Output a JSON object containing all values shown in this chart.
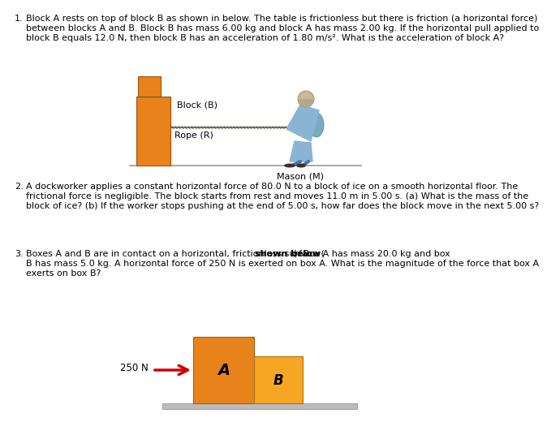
{
  "background_color": "#ffffff",
  "text_color": "#000000",
  "q1_line1": "Block A rests on top of block B as shown in below. The table is frictionless but there is friction (a horizontal force)",
  "q1_line2": "between blocks A and B. Block B has mass 6.00 kg and block A has mass 2.00 kg. If the horizontal pull applied to",
  "q1_line3": "block B equals 12.0 N, then block B has an acceleration of 1.80 m/s². What is the acceleration of block A?",
  "q2_line1": "A dockworker applies a constant horizontal force of 80.0 N to a block of ice on a smooth horizontal floor. The",
  "q2_line2": "frictional force is negligible. The block starts from rest and moves 11.0 m in 5.00 s. (a) What is the mass of the",
  "q2_line3": "block of ice? (b) If the worker stops pushing at the end of 5.00 s, how far does the block move in the next 5.00 s?",
  "q3_line1_pre": "Boxes A and B are in contact on a horizontal, frictionless surface (",
  "q3_line1_bold": "shown below",
  "q3_line1_post": "). Box A has mass 20.0 kg and box",
  "q3_line2": "B has mass 5.0 kg. A horizontal force of 250 N is exerted on box A. What is the magnitude of the force that box A",
  "q3_line3": "exerts on box B?",
  "block_orange": "#E8821A",
  "block_light_orange": "#F5A623",
  "floor_color": "#999999",
  "floor_dark": "#888888",
  "rope_color": "#888866",
  "arrow_color": "#CC0000",
  "mason_body": "#8AB4D4",
  "mason_skin": "#C8956A",
  "mason_dark": "#6090B0",
  "font_size": 8.0,
  "diagram1_block_label": "Block (B)",
  "diagram1_rope_label": "Rope (R)",
  "diagram1_mason_label": "Mason (M)",
  "diagram3_force_label": "250 N",
  "diagram3_A_label": "A",
  "diagram3_B_label": "B"
}
